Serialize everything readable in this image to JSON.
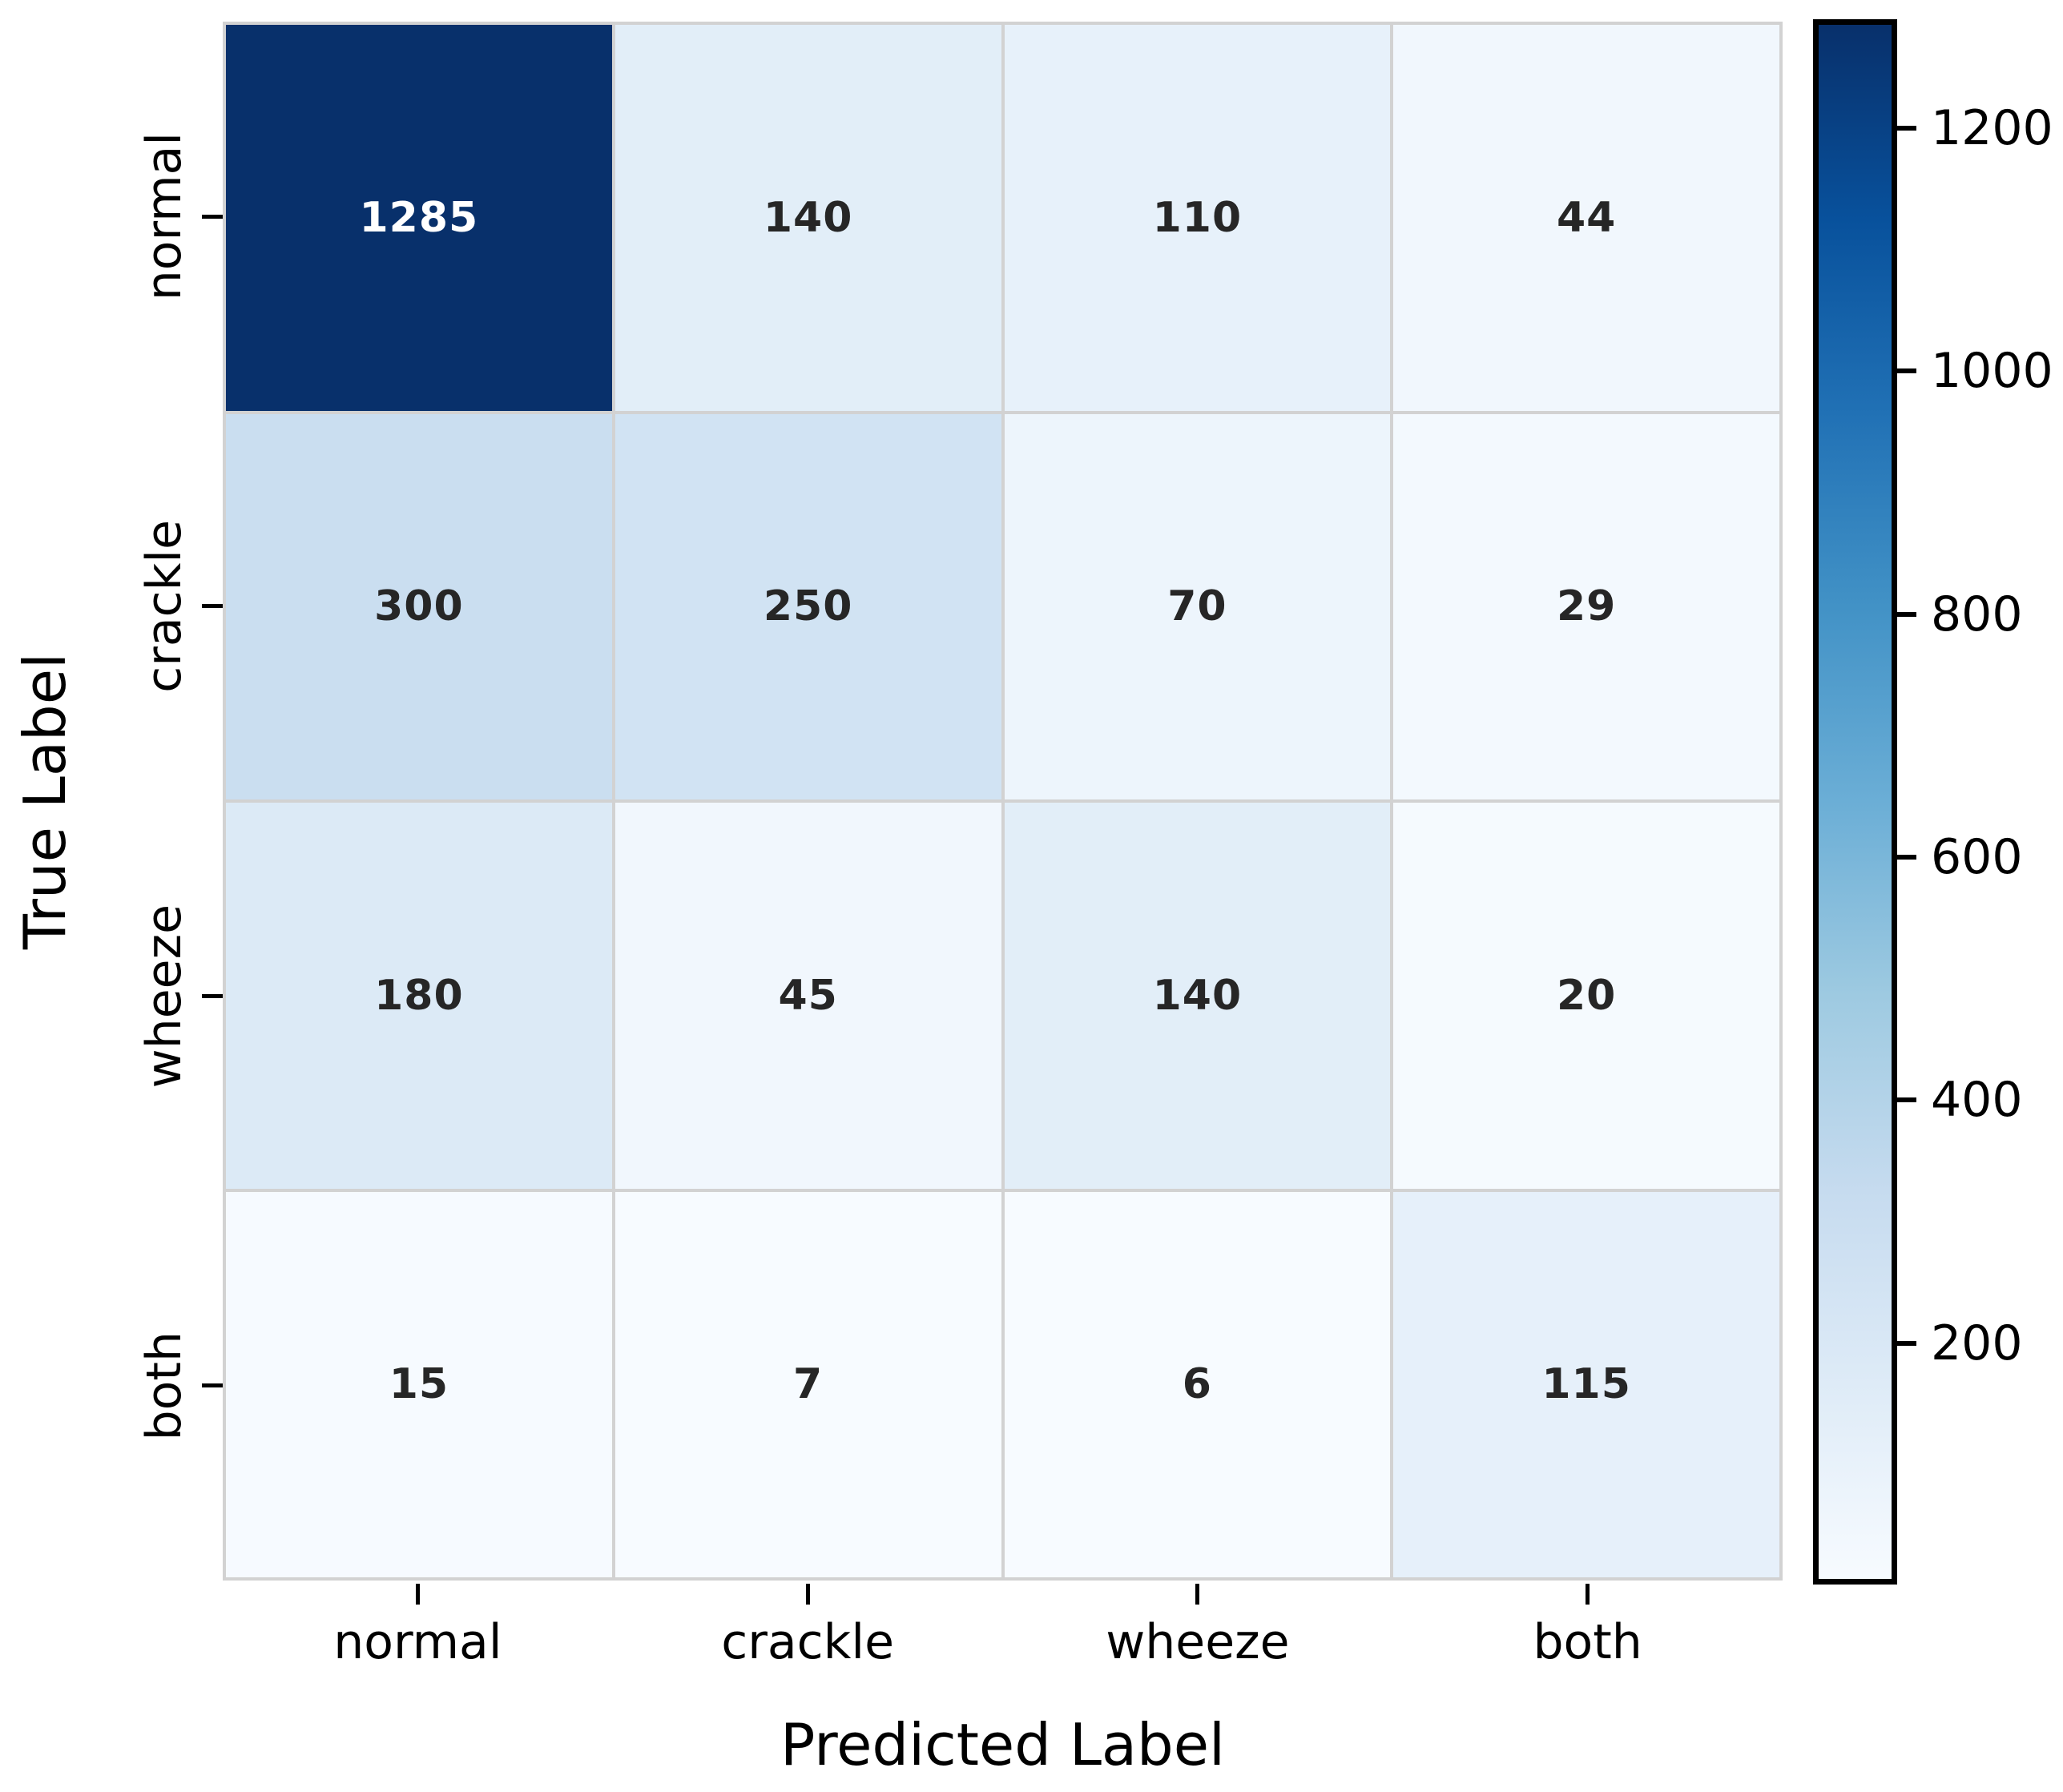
{
  "figure": {
    "background": "#ffffff"
  },
  "chart_data": {
    "type": "heatmap",
    "title": "",
    "xlabel": "Predicted Label",
    "ylabel": "True Label",
    "x_categories": [
      "normal",
      "crackle",
      "wheeze",
      "both"
    ],
    "y_categories": [
      "normal",
      "crackle",
      "wheeze",
      "both"
    ],
    "matrix": [
      [
        1285,
        140,
        110,
        44
      ],
      [
        300,
        250,
        70,
        29
      ],
      [
        180,
        45,
        140,
        20
      ],
      [
        15,
        7,
        6,
        115
      ]
    ],
    "vmin": 6,
    "vmax": 1285,
    "colormap": {
      "name": "Blues",
      "anchors_light_to_dark": [
        "#f7fbff",
        "#deebf7",
        "#c6dbef",
        "#9ecae1",
        "#6baed6",
        "#4292c6",
        "#2171b5",
        "#08519c",
        "#08306b"
      ]
    },
    "grid_line_color": "#d2d2d2",
    "annotation_color_on_dark": "#ffffff",
    "annotation_color_on_light": "#262626",
    "legend_position": "right-colorbar",
    "colorbar": {
      "tick_values": [
        1200,
        1000,
        800,
        600,
        400,
        200
      ],
      "tick_labels": [
        "1200",
        "1000",
        "800",
        "600",
        "400",
        "200"
      ]
    }
  }
}
